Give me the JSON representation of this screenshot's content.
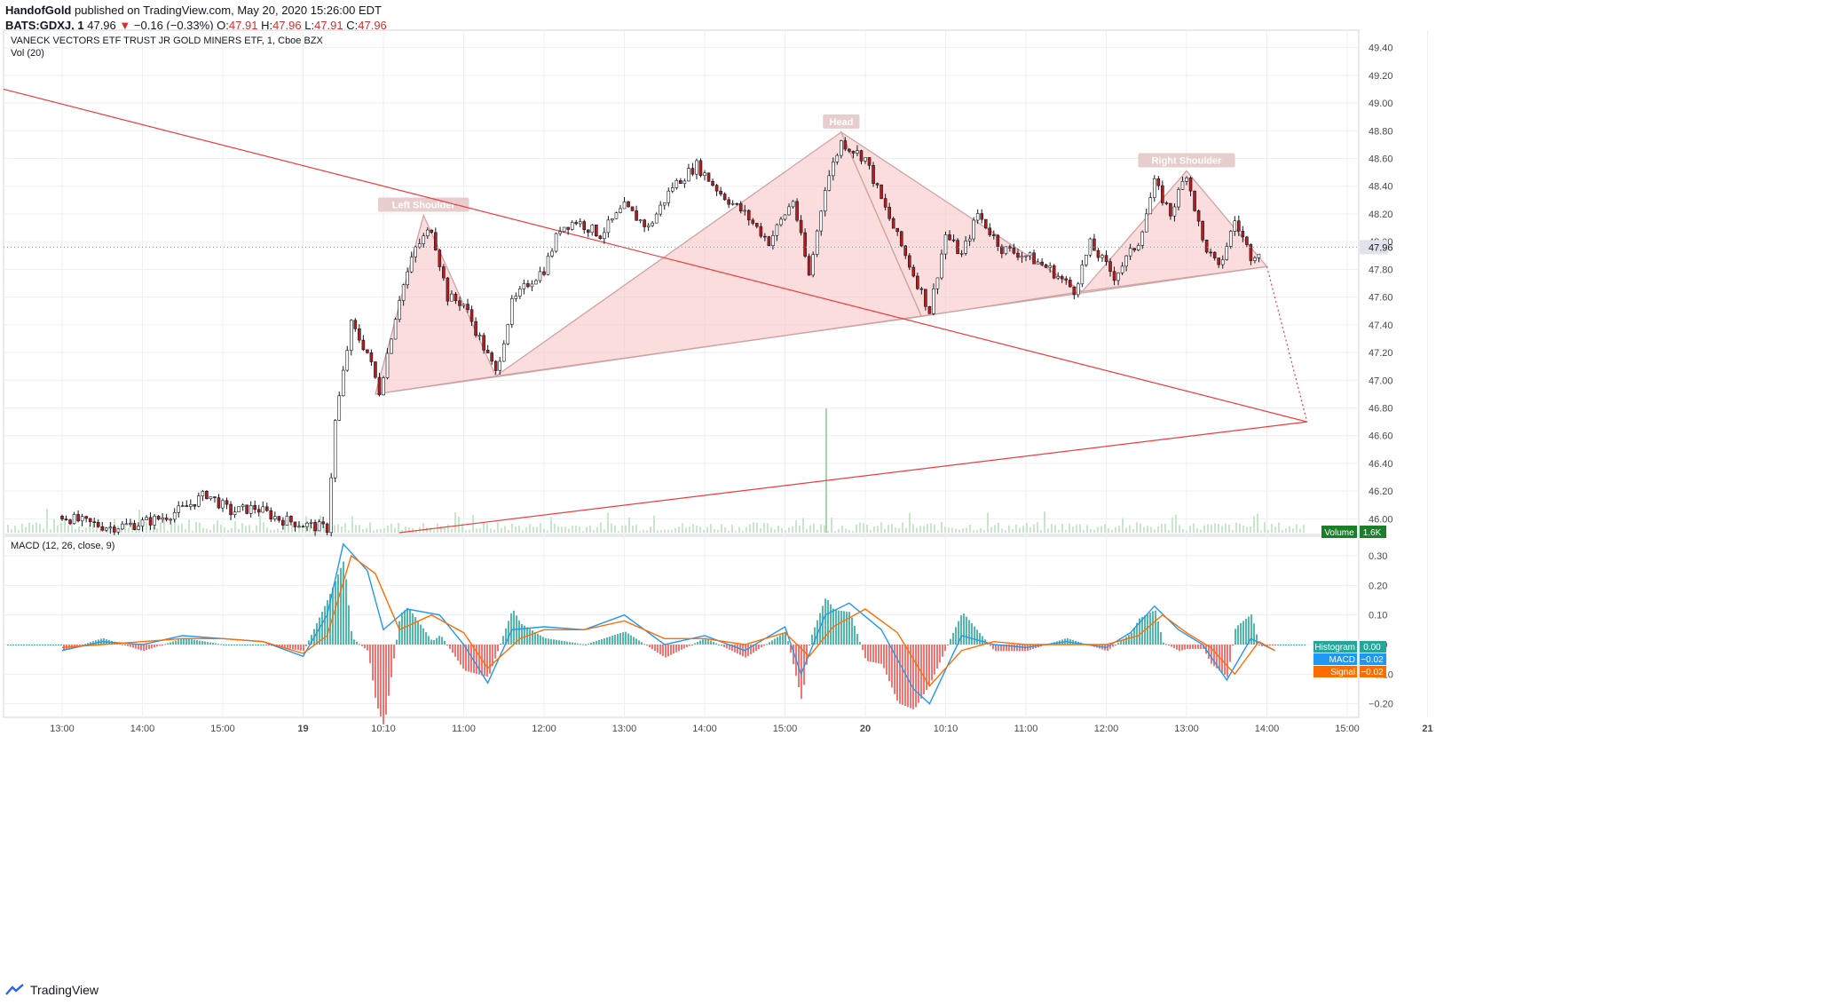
{
  "header": {
    "author": "HandofGold",
    "published": "published on TradingView.com, May 20, 2020 15:26:00 EDT",
    "symbol": "BATS:GDXJ, 1",
    "last": "47.96",
    "change": "−0.16 (−0.33%)",
    "o_label": "O:",
    "o": "47.91",
    "h_label": "H:",
    "h": "47.96",
    "l_label": "L:",
    "l": "47.91",
    "c_label": "C:",
    "c": "47.96"
  },
  "footer": {
    "brand": "TradingView"
  },
  "colors": {
    "up_body": "#ffffff",
    "down_body": "#b71c1c",
    "wick": "#131722",
    "trendline": "#ef3b3b",
    "pattern_fill": "#f9c7c7",
    "pattern_line": "#cfa3a3",
    "macd_line": "#2196f3",
    "signal_line": "#ff6d00",
    "hist_pos": "#26a69a",
    "hist_neg": "#ef5350",
    "volume": "#c8e6c9",
    "grid": "#eceff3",
    "axis_text": "#4a4a4a"
  },
  "chart_data": [
    {
      "type": "candlestick",
      "title": "VANECK VECTORS ETF TRUST JR GOLD MINERS ETF, 1, Cboe BZX",
      "volume_label": "Vol (20)",
      "ylim": [
        45.9,
        49.5
      ],
      "y_ticks": [
        "49.40",
        "49.20",
        "49.00",
        "48.80",
        "48.60",
        "48.40",
        "48.20",
        "48.00",
        "47.80",
        "47.60",
        "47.40",
        "47.20",
        "47.00",
        "46.80",
        "46.60",
        "46.40",
        "46.20",
        "46.00"
      ],
      "x_ticks": [
        "13:00",
        "14:00",
        "15:00",
        "19",
        "10:10",
        "11:00",
        "12:00",
        "13:00",
        "14:00",
        "15:00",
        "20",
        "10:10",
        "11:00",
        "12:00",
        "13:00",
        "14:00",
        "15:00",
        "21"
      ],
      "last_price_label": "47.96",
      "volume_badge": {
        "label": "Volume",
        "value": "1.6K"
      },
      "annotations": {
        "head": "Head",
        "left_shoulder": "Left Shoulder",
        "right_shoulder": "Right Shoulder"
      },
      "pattern_points": {
        "left_shoulder_start": [
          3.9,
          46.9
        ],
        "left_shoulder_peak": [
          4.5,
          48.19
        ],
        "left_trough": [
          5.4,
          47.03
        ],
        "head_peak": [
          9.7,
          48.79
        ],
        "right_trough": [
          10.7,
          47.46
        ],
        "neck_right_low": [
          12.7,
          47.64
        ],
        "right_shoulder_peak": [
          14.0,
          48.51
        ],
        "right_shoulder_end": [
          15.0,
          47.82
        ],
        "target": [
          15.5,
          46.7
        ]
      },
      "overview": [
        [
          0.0,
          46.02
        ],
        [
          0.3,
          45.97
        ],
        [
          0.6,
          45.94
        ],
        [
          0.9,
          45.96
        ],
        [
          1.2,
          46.0
        ],
        [
          1.5,
          46.07
        ],
        [
          1.8,
          46.18
        ],
        [
          2.1,
          46.05
        ],
        [
          2.4,
          46.08
        ],
        [
          2.7,
          46.0
        ],
        [
          3.0,
          45.96
        ],
        [
          3.3,
          45.93
        ],
        [
          3.4,
          46.7
        ],
        [
          3.6,
          47.4
        ],
        [
          3.8,
          47.2
        ],
        [
          3.95,
          46.92
        ],
        [
          4.2,
          47.6
        ],
        [
          4.4,
          47.95
        ],
        [
          4.6,
          48.1
        ],
        [
          4.8,
          47.6
        ],
        [
          5.0,
          47.55
        ],
        [
          5.2,
          47.3
        ],
        [
          5.4,
          47.05
        ],
        [
          5.6,
          47.55
        ],
        [
          5.8,
          47.7
        ],
        [
          6.0,
          47.8
        ],
        [
          6.2,
          48.1
        ],
        [
          6.4,
          48.15
        ],
        [
          6.7,
          48.05
        ],
        [
          7.0,
          48.25
        ],
        [
          7.3,
          48.1
        ],
        [
          7.6,
          48.4
        ],
        [
          7.9,
          48.55
        ],
        [
          8.2,
          48.35
        ],
        [
          8.5,
          48.2
        ],
        [
          8.8,
          48.0
        ],
        [
          9.1,
          48.3
        ],
        [
          9.3,
          47.75
        ],
        [
          9.5,
          48.4
        ],
        [
          9.7,
          48.72
        ],
        [
          10.0,
          48.6
        ],
        [
          10.2,
          48.3
        ],
        [
          10.5,
          47.9
        ],
        [
          10.8,
          47.5
        ],
        [
          11.0,
          48.05
        ],
        [
          11.2,
          47.9
        ],
        [
          11.4,
          48.2
        ],
        [
          11.7,
          47.95
        ],
        [
          12.0,
          47.9
        ],
        [
          12.3,
          47.8
        ],
        [
          12.6,
          47.65
        ],
        [
          12.8,
          47.98
        ],
        [
          13.1,
          47.75
        ],
        [
          13.4,
          48.0
        ],
        [
          13.6,
          48.42
        ],
        [
          13.8,
          48.2
        ],
        [
          14.0,
          48.5
        ],
        [
          14.2,
          48.0
        ],
        [
          14.4,
          47.8
        ],
        [
          14.6,
          48.15
        ],
        [
          14.8,
          47.9
        ],
        [
          14.95,
          47.96
        ]
      ]
    },
    {
      "type": "line",
      "title": "MACD (12, 26, close, 9)",
      "ylim": [
        -0.24,
        0.36
      ],
      "y_ticks": [
        "0.30",
        "0.20",
        "0.10",
        "0.00",
        "−0.10",
        "−0.20"
      ],
      "badges": [
        {
          "label": "Histogram",
          "value": "0.00"
        },
        {
          "label": "MACD",
          "value": "−0.02"
        },
        {
          "label": "Signal",
          "value": "−0.02"
        }
      ],
      "series": [
        {
          "name": "MACD",
          "values": [
            [
              0.0,
              -0.02
            ],
            [
              0.5,
              0.01
            ],
            [
              1.0,
              0.0
            ],
            [
              1.5,
              0.03
            ],
            [
              2.0,
              0.02
            ],
            [
              2.5,
              0.01
            ],
            [
              3.0,
              -0.04
            ],
            [
              3.3,
              0.1
            ],
            [
              3.5,
              0.34
            ],
            [
              3.8,
              0.25
            ],
            [
              4.0,
              0.05
            ],
            [
              4.3,
              0.12
            ],
            [
              4.7,
              0.1
            ],
            [
              5.0,
              0.0
            ],
            [
              5.3,
              -0.13
            ],
            [
              5.6,
              0.05
            ],
            [
              6.0,
              0.06
            ],
            [
              6.5,
              0.05
            ],
            [
              7.0,
              0.1
            ],
            [
              7.5,
              0.0
            ],
            [
              8.0,
              0.03
            ],
            [
              8.5,
              -0.02
            ],
            [
              9.0,
              0.06
            ],
            [
              9.2,
              -0.1
            ],
            [
              9.5,
              0.1
            ],
            [
              9.8,
              0.14
            ],
            [
              10.2,
              0.05
            ],
            [
              10.6,
              -0.15
            ],
            [
              10.8,
              -0.2
            ],
            [
              11.2,
              0.03
            ],
            [
              11.6,
              0.0
            ],
            [
              12.0,
              -0.01
            ],
            [
              12.5,
              0.01
            ],
            [
              13.0,
              -0.01
            ],
            [
              13.3,
              0.04
            ],
            [
              13.6,
              0.13
            ],
            [
              13.9,
              0.05
            ],
            [
              14.2,
              0.0
            ],
            [
              14.5,
              -0.12
            ],
            [
              14.8,
              0.02
            ],
            [
              15.1,
              -0.02
            ]
          ]
        },
        {
          "name": "Signal",
          "values": [
            [
              0.0,
              -0.01
            ],
            [
              0.5,
              0.0
            ],
            [
              1.0,
              0.01
            ],
            [
              1.5,
              0.02
            ],
            [
              2.0,
              0.02
            ],
            [
              2.5,
              0.01
            ],
            [
              3.0,
              -0.03
            ],
            [
              3.3,
              0.03
            ],
            [
              3.6,
              0.3
            ],
            [
              3.9,
              0.24
            ],
            [
              4.2,
              0.05
            ],
            [
              4.6,
              0.1
            ],
            [
              5.0,
              0.04
            ],
            [
              5.3,
              -0.08
            ],
            [
              5.7,
              0.02
            ],
            [
              6.0,
              0.05
            ],
            [
              6.5,
              0.05
            ],
            [
              7.0,
              0.08
            ],
            [
              7.5,
              0.02
            ],
            [
              8.0,
              0.02
            ],
            [
              8.5,
              0.0
            ],
            [
              9.0,
              0.04
            ],
            [
              9.3,
              -0.04
            ],
            [
              9.6,
              0.06
            ],
            [
              10.0,
              0.12
            ],
            [
              10.4,
              0.04
            ],
            [
              10.8,
              -0.14
            ],
            [
              11.2,
              -0.02
            ],
            [
              11.6,
              0.01
            ],
            [
              12.0,
              0.0
            ],
            [
              12.5,
              0.0
            ],
            [
              13.0,
              0.0
            ],
            [
              13.4,
              0.03
            ],
            [
              13.7,
              0.1
            ],
            [
              14.0,
              0.04
            ],
            [
              14.3,
              -0.01
            ],
            [
              14.6,
              -0.1
            ],
            [
              14.9,
              0.01
            ],
            [
              15.1,
              -0.02
            ]
          ]
        }
      ]
    }
  ]
}
